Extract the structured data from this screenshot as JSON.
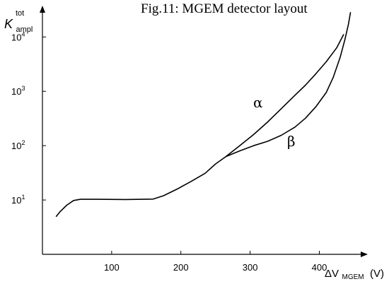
{
  "chart_data": {
    "type": "line",
    "title": "Fig.11: MGEM detector layout",
    "xlabel": {
      "main": "ΔV",
      "sub": "MGEM",
      "unit": "(V)"
    },
    "ylabel": {
      "main": "K",
      "sup": "tot",
      "sub": "ampl"
    },
    "xlim": [
      0,
      470
    ],
    "ylim_log10": [
      0.0,
      4.55
    ],
    "scale_y": "log",
    "grid": false,
    "x_ticks": [
      {
        "value": 100,
        "label": "100"
      },
      {
        "value": 200,
        "label": "200"
      },
      {
        "value": 300,
        "label": "300"
      },
      {
        "value": 400,
        "label": "400"
      }
    ],
    "y_ticks": [
      {
        "value": 10,
        "base": "10",
        "exp": "1"
      },
      {
        "value": 100,
        "base": "10",
        "exp": "2"
      },
      {
        "value": 1000,
        "base": "10",
        "exp": "3"
      },
      {
        "value": 10000,
        "base": "10",
        "exp": "4"
      }
    ],
    "series": [
      {
        "name": "α",
        "x": [
          20,
          25,
          35,
          45,
          55,
          80,
          120,
          160,
          175,
          195,
          215,
          235,
          250,
          265,
          285,
          305,
          325,
          345,
          365,
          380,
          395,
          410,
          425,
          435
        ],
        "y": [
          5,
          6,
          8,
          9.8,
          10.3,
          10.3,
          10.2,
          10.4,
          12,
          16,
          22,
          31,
          46,
          63,
          100,
          160,
          270,
          480,
          850,
          1300,
          2100,
          3500,
          6300,
          11000
        ]
      },
      {
        "name": "β",
        "x": [
          265,
          285,
          305,
          325,
          345,
          365,
          380,
          395,
          410,
          420,
          430,
          437,
          442,
          445
        ],
        "y": [
          63,
          80,
          100,
          120,
          155,
          220,
          320,
          520,
          950,
          1800,
          4200,
          9000,
          17000,
          28000
        ]
      }
    ],
    "annotations": [
      {
        "text": "α",
        "series": "α"
      },
      {
        "text": "β",
        "series": "β"
      }
    ]
  }
}
